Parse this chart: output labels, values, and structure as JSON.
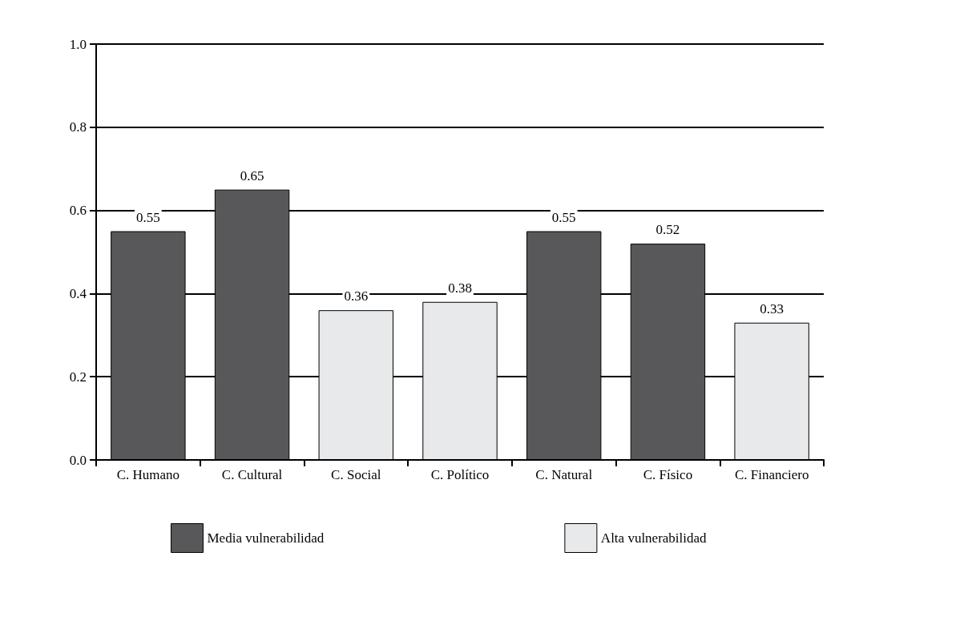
{
  "chart_data": {
    "type": "bar",
    "categories": [
      "C. Humano",
      "C. Cultural",
      "C. Social",
      "C. Político",
      "C. Natural",
      "C. Físico",
      "C. Financiero"
    ],
    "stacked": true,
    "series": [
      {
        "name": "Media vulnerabilidad",
        "color": "#58585a",
        "values": [
          0.55,
          0.65,
          null,
          null,
          0.55,
          0.52,
          null
        ]
      },
      {
        "name": "Alta vulnerabilidad",
        "color": "#e8e9eb",
        "values": [
          null,
          null,
          0.36,
          0.38,
          null,
          null,
          0.33
        ]
      }
    ],
    "ylim": [
      0,
      1
    ],
    "yticks": [
      {
        "value": 0,
        "label": "0.0"
      },
      0.2,
      0.4,
      0.6,
      0.8,
      {
        "value": 1,
        "label": "1.0"
      }
    ],
    "grid": "y",
    "legend": "bottom",
    "data_labels": true
  }
}
